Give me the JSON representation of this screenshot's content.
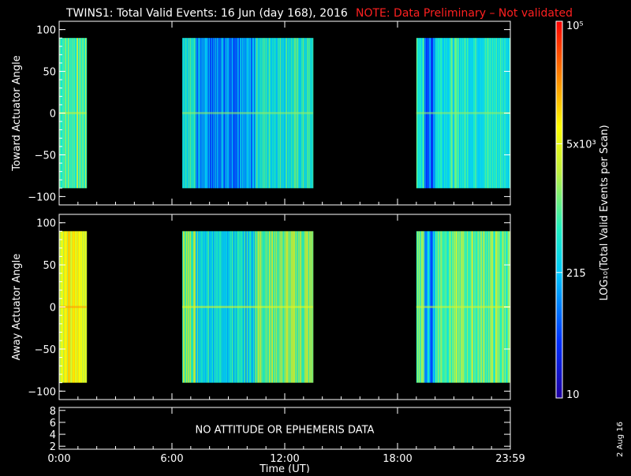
{
  "title": "TWINS1: Total Valid Events: 16 Jun (day 168), 2016",
  "note": "NOTE: Data Preliminary – Not validated",
  "date_stamp": "2 Aug 16",
  "colorbar": {
    "label": "LOG₁₀(Total Valid Events per Scan)",
    "scale": "log",
    "min": 10,
    "max": 100000,
    "tick_labels": [
      "10",
      "215",
      "5x10³",
      "10⁵"
    ],
    "tick_values": [
      10,
      215,
      5000,
      100000
    ]
  },
  "chart_data": [
    {
      "type": "heatmap",
      "title": "",
      "xlabel": "",
      "ylabel": "Toward Actuator Angle",
      "xlim": [
        0,
        24
      ],
      "ylim": [
        -110,
        110
      ],
      "x_ticks": [
        0,
        6,
        12,
        18,
        24
      ],
      "y_ticks": [
        100,
        50,
        0,
        -50,
        -100
      ],
      "y_tick_labels": [
        "100",
        "50",
        "0",
        "−50",
        "−100"
      ],
      "angle_range": [
        -90,
        90
      ],
      "segments": [
        {
          "start": 0.0,
          "end": 1.45,
          "log_level": 2.95
        },
        {
          "start": 6.55,
          "end": 13.5,
          "log_level": 2.7
        },
        {
          "start": 19.0,
          "end": 24.0,
          "log_level": 2.7
        }
      ]
    },
    {
      "type": "heatmap",
      "title": "",
      "xlabel": "",
      "ylabel": "Away Actuator Angle",
      "xlim": [
        0,
        24
      ],
      "ylim": [
        -110,
        110
      ],
      "x_ticks": [
        0,
        6,
        12,
        18,
        24
      ],
      "y_ticks": [
        100,
        50,
        0,
        -50,
        -100
      ],
      "y_tick_labels": [
        "100",
        "50",
        "0",
        "−50",
        "−100"
      ],
      "angle_range": [
        -90,
        90
      ],
      "segments": [
        {
          "start": 0.0,
          "end": 1.45,
          "log_level": 3.75
        },
        {
          "start": 6.55,
          "end": 13.5,
          "log_level": 3.15
        },
        {
          "start": 19.0,
          "end": 24.0,
          "log_level": 3.05
        }
      ]
    },
    {
      "type": "line",
      "title": "",
      "ylabel": "",
      "xlabel": "Time (UT)",
      "xlim": [
        0,
        24
      ],
      "ylim": [
        1.5,
        8.5
      ],
      "y_ticks": [
        8,
        6,
        4,
        2
      ],
      "y_tick_labels": [
        "8",
        "6",
        "4",
        "2"
      ],
      "x_ticks": [
        0,
        6,
        12,
        18,
        24
      ],
      "x_tick_labels": [
        "0:00",
        "6:00",
        "12:00",
        "18:00",
        "23:59"
      ],
      "message": "NO ATTITUDE OR EPHEMERIS DATA"
    }
  ]
}
